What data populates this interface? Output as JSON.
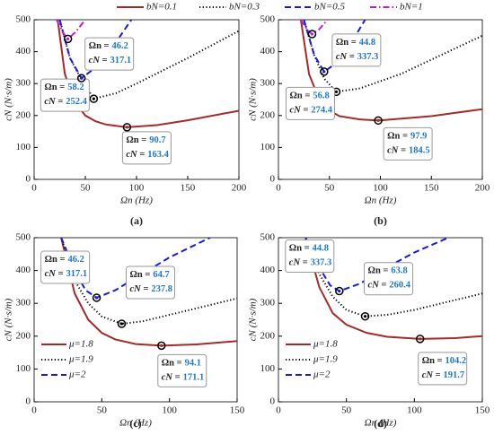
{
  "chart_data": [
    {
      "type": "line",
      "label": "(a)",
      "xlabel": "Ωn (Hz)",
      "ylabel": "cN (N·s/m)",
      "xlim": [
        0,
        200
      ],
      "ylim": [
        0,
        500
      ],
      "xticks": [
        0,
        50,
        100,
        150,
        200
      ],
      "yticks": [
        0,
        100,
        200,
        300,
        400,
        500
      ],
      "legend": "top-outside",
      "annotation_x_label": "Ωn =",
      "annotation_y_label": "cN =",
      "series": [
        {
          "name": "bN=0.1",
          "color": "#a52a2a",
          "style": "solid",
          "x": [
            23,
            30,
            40,
            50,
            60,
            70,
            90.7,
            120,
            150,
            200
          ],
          "values": [
            500,
            330,
            240,
            200,
            182,
            172,
            163.4,
            170,
            185,
            215
          ],
          "optimum": {
            "x": 90.7,
            "y": 163.4,
            "labeled": true
          }
        },
        {
          "name": "bN=0.3",
          "color": "#000000",
          "style": "dotted",
          "x": [
            25,
            35,
            45,
            58.2,
            80,
            100,
            150,
            200
          ],
          "values": [
            500,
            380,
            320,
            252.4,
            270,
            300,
            380,
            465
          ],
          "optimum": {
            "x": 58.2,
            "y": 252.4,
            "labeled": true
          }
        },
        {
          "name": "bN=0.5",
          "color": "#1a1adb",
          "style": "dashed",
          "x": [
            25,
            35,
            46.2,
            60,
            80,
            95
          ],
          "values": [
            500,
            380,
            317.1,
            350,
            430,
            500
          ],
          "optimum": {
            "x": 46.2,
            "y": 317.1,
            "labeled": true
          }
        },
        {
          "name": "bN=1",
          "color": "#c020c0",
          "style": "dashdot",
          "x": [
            22,
            28,
            33,
            40,
            50
          ],
          "values": [
            500,
            460,
            440,
            460,
            500
          ],
          "optimum": {
            "x": 33,
            "y": 440,
            "labeled": false
          }
        }
      ]
    },
    {
      "type": "line",
      "label": "(b)",
      "xlabel": "Ωn (Hz)",
      "ylabel": "cN (N·s/m)",
      "xlim": [
        0,
        200
      ],
      "ylim": [
        0,
        500
      ],
      "xticks": [
        0,
        50,
        100,
        150,
        200
      ],
      "yticks": [
        0,
        100,
        200,
        300,
        400,
        500
      ],
      "annotation_x_label": "Ωn =",
      "annotation_y_label": "cN =",
      "series": [
        {
          "color": "#a52a2a",
          "style": "solid",
          "x": [
            22,
            30,
            40,
            50,
            60,
            80,
            97.9,
            150,
            200
          ],
          "values": [
            500,
            330,
            250,
            215,
            198,
            188,
            184.5,
            198,
            220
          ],
          "optimum": {
            "x": 97.9,
            "y": 184.5,
            "labeled": true
          }
        },
        {
          "color": "#000000",
          "style": "dotted",
          "x": [
            25,
            35,
            45,
            56.8,
            80,
            120,
            160,
            200
          ],
          "values": [
            500,
            390,
            315,
            274.4,
            285,
            330,
            390,
            450
          ],
          "optimum": {
            "x": 56.8,
            "y": 274.4,
            "labeled": true
          }
        },
        {
          "color": "#1a1adb",
          "style": "dashed",
          "x": [
            25,
            35,
            44.8,
            55,
            70,
            85
          ],
          "values": [
            500,
            390,
            337.3,
            360,
            420,
            500
          ],
          "optimum": {
            "x": 44.8,
            "y": 337.3,
            "labeled": true
          }
        },
        {
          "color": "#c020c0",
          "style": "dashdot",
          "x": [
            22,
            28,
            33,
            40,
            48
          ],
          "values": [
            500,
            470,
            455,
            470,
            500
          ],
          "optimum": {
            "x": 33,
            "y": 455,
            "labeled": false
          }
        }
      ]
    },
    {
      "type": "line",
      "label": "(c)",
      "xlabel": "Ωn (Hz)",
      "ylabel": "cN (N·s/m)",
      "xlim": [
        0,
        150
      ],
      "ylim": [
        0,
        500
      ],
      "xticks": [
        0,
        50,
        100,
        150
      ],
      "yticks": [
        0,
        100,
        200,
        300,
        400,
        500
      ],
      "legend": "lower-left",
      "annotation_x_label": "Ωn =",
      "annotation_y_label": "cN =",
      "series": [
        {
          "name": "μ=1.8",
          "color": "#a52a2a",
          "style": "solid",
          "x": [
            20,
            30,
            40,
            50,
            60,
            75,
            94.1,
            120,
            150
          ],
          "values": [
            500,
            330,
            250,
            210,
            190,
            176,
            171.1,
            175,
            185
          ],
          "optimum": {
            "x": 94.1,
            "y": 171.1,
            "labeled": true
          }
        },
        {
          "name": "μ=1.9",
          "color": "#000000",
          "style": "dotted",
          "x": [
            20,
            30,
            40,
            50,
            64.7,
            80,
            100,
            150
          ],
          "values": [
            500,
            370,
            300,
            260,
            237.8,
            245,
            265,
            315
          ],
          "optimum": {
            "x": 64.7,
            "y": 237.8,
            "labeled": true
          }
        },
        {
          "name": "μ=2",
          "color": "#1a1adb",
          "style": "dashed",
          "x": [
            20,
            30,
            38,
            46.2,
            60,
            80,
            100,
            130
          ],
          "values": [
            500,
            400,
            340,
            317.1,
            340,
            390,
            440,
            500
          ],
          "optimum": {
            "x": 46.2,
            "y": 317.1,
            "labeled": true
          }
        }
      ]
    },
    {
      "type": "line",
      "label": "(d)",
      "xlabel": "Ωn (Hz)",
      "ylabel": "cN (N·s/m)",
      "xlim": [
        0,
        150
      ],
      "ylim": [
        0,
        500
      ],
      "xticks": [
        0,
        50,
        100,
        150
      ],
      "yticks": [
        0,
        100,
        200,
        300,
        400,
        500
      ],
      "legend": "lower-left",
      "annotation_x_label": "Ωn =",
      "annotation_y_label": "cN =",
      "series": [
        {
          "name": "μ=1.8",
          "color": "#a52a2a",
          "style": "solid",
          "x": [
            20,
            30,
            40,
            50,
            65,
            80,
            104.2,
            130,
            150
          ],
          "values": [
            500,
            350,
            270,
            235,
            210,
            198,
            191.7,
            194,
            200
          ],
          "optimum": {
            "x": 104.2,
            "y": 191.7,
            "labeled": true
          }
        },
        {
          "name": "μ=1.9",
          "color": "#000000",
          "style": "dotted",
          "x": [
            20,
            30,
            40,
            50,
            63.8,
            80,
            100,
            150
          ],
          "values": [
            500,
            390,
            320,
            280,
            260.4,
            265,
            280,
            330
          ],
          "optimum": {
            "x": 63.8,
            "y": 260.4,
            "labeled": true
          }
        },
        {
          "name": "μ=2",
          "color": "#1a1adb",
          "style": "dashed",
          "x": [
            20,
            30,
            38,
            44.8,
            60,
            80,
            100,
            125
          ],
          "values": [
            500,
            410,
            355,
            337.3,
            360,
            410,
            455,
            500
          ],
          "optimum": {
            "x": 44.8,
            "y": 337.3,
            "labeled": true
          }
        }
      ]
    }
  ]
}
